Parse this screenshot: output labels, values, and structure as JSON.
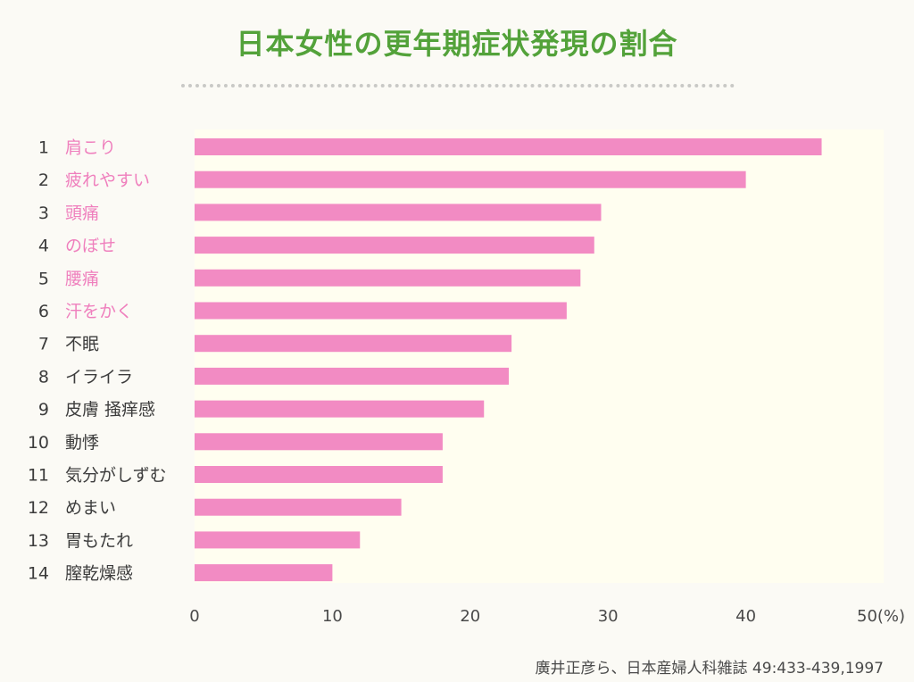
{
  "title": "日本女性の更年期症状発現の割合",
  "source": "廣井正彦ら、日本産婦人科雑誌 49:433-439,1997",
  "colors": {
    "title": "#53a23a",
    "bar": "#f28bc3",
    "highlight_label": "#ef7fbd",
    "normal_label": "#3c3c3c",
    "plot_background": "#fffef0"
  },
  "chart_data": {
    "type": "bar",
    "orientation": "horizontal",
    "title": "日本女性の更年期症状発現の割合",
    "ranks": [
      "1",
      "2",
      "3",
      "4",
      "5",
      "6",
      "7",
      "8",
      "9",
      "10",
      "11",
      "12",
      "13",
      "14"
    ],
    "categories": [
      "肩こり",
      "疲れやすい",
      "頭痛",
      "のぼせ",
      "腰痛",
      "汗をかく",
      "不眠",
      "イライラ",
      "皮膚 掻痒感",
      "動悸",
      "気分がしずむ",
      "めまい",
      "胃もたれ",
      "膣乾燥感"
    ],
    "values": [
      45.5,
      40,
      29.5,
      29,
      28,
      27,
      23,
      22.8,
      21,
      18,
      18,
      15,
      12,
      10
    ],
    "highlighted_count": 6,
    "xlim": [
      0,
      50
    ],
    "xticks": [
      0,
      10,
      20,
      30,
      40,
      50
    ],
    "xtick_labels": [
      "0",
      "10",
      "20",
      "30",
      "40",
      "50(%)"
    ],
    "grid": false,
    "legend": "none"
  }
}
